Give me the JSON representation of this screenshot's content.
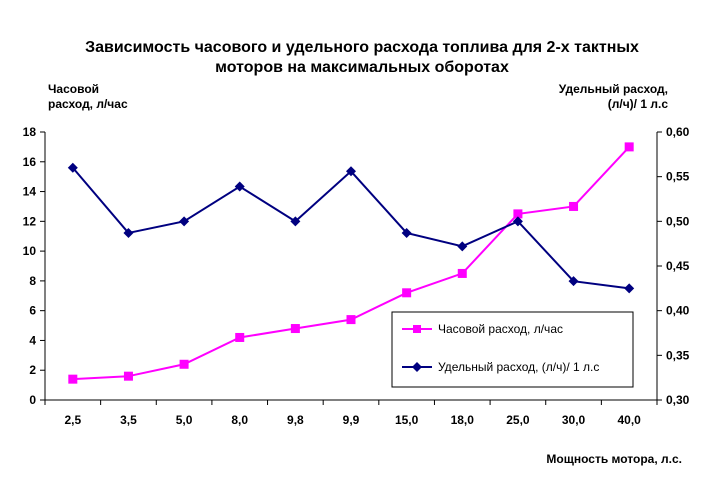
{
  "chart_data": {
    "type": "line",
    "title_lines": [
      "Зависимость часового и удельного расхода топлива для 2-х тактных",
      "моторов на максимальных оборотах"
    ],
    "y_left_title_lines": [
      "Часовой",
      "расход, л/час"
    ],
    "y_right_title_lines": [
      "Удельный расход,",
      "(л/ч)/ 1 л.с"
    ],
    "x_title": "Мощность мотора, л.с.",
    "categories": [
      "2,5",
      "3,5",
      "5,0",
      "8,0",
      "9,8",
      "9,9",
      "15,0",
      "18,0",
      "25,0",
      "30,0",
      "40,0"
    ],
    "y_left": {
      "min": 0,
      "max": 18,
      "step": 2,
      "ticks": [
        "0",
        "2",
        "4",
        "6",
        "8",
        "10",
        "12",
        "14",
        "16",
        "18"
      ]
    },
    "y_right": {
      "min": 0.3,
      "max": 0.6,
      "step": 0.05,
      "ticks": [
        "0,30",
        "0,35",
        "0,40",
        "0,45",
        "0,50",
        "0,55",
        "0,60"
      ]
    },
    "series": [
      {
        "name": "Часовой расход, л/час",
        "axis": "left",
        "color": "#ff00ff",
        "marker": "square",
        "values": [
          1.4,
          1.6,
          2.4,
          4.2,
          4.8,
          5.4,
          7.2,
          8.5,
          12.5,
          13.0,
          17.0
        ]
      },
      {
        "name": "Удельный расход, (л/ч)/ 1 л.с",
        "axis": "right",
        "color": "#000080",
        "marker": "diamond",
        "values": [
          0.56,
          0.487,
          0.5,
          0.539,
          0.5,
          0.556,
          0.487,
          0.472,
          0.5,
          0.433,
          0.425
        ]
      }
    ],
    "grid": false,
    "legend_position": "inside-bottom-right"
  }
}
